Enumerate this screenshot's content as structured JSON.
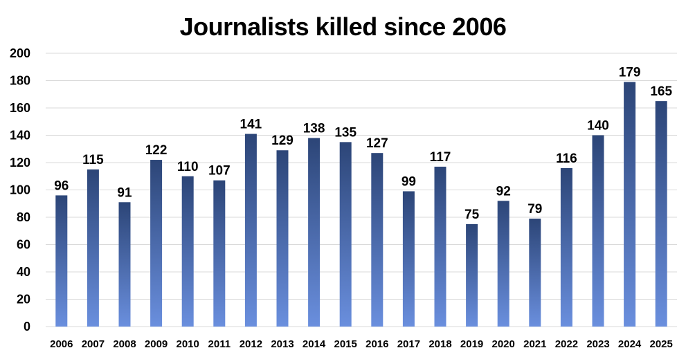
{
  "chart_data": {
    "type": "bar",
    "title": "Journalists killed since 2006",
    "xlabel": "",
    "ylabel": "",
    "categories": [
      "2006",
      "2007",
      "2008",
      "2009",
      "2010",
      "2011",
      "2012",
      "2013",
      "2014",
      "2015",
      "2016",
      "2017",
      "2018",
      "2019",
      "2020",
      "2021",
      "2022",
      "2023",
      "2024",
      "2025"
    ],
    "values": [
      96,
      115,
      91,
      122,
      110,
      107,
      141,
      129,
      138,
      135,
      127,
      99,
      117,
      75,
      92,
      79,
      116,
      140,
      179,
      165
    ],
    "ylim": [
      0,
      200
    ],
    "yticks": [
      0,
      20,
      40,
      60,
      80,
      100,
      120,
      140,
      160,
      180,
      200
    ],
    "grid": true,
    "legend": "none",
    "bar_gradient": [
      "#2c4577",
      "#6a8fde"
    ]
  }
}
